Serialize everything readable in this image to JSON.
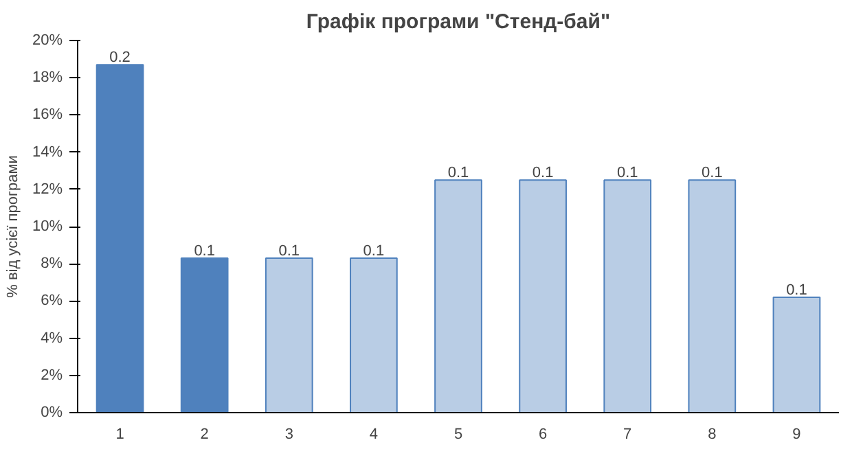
{
  "chart_data": {
    "type": "bar",
    "title": "Графік програми \"Стенд-бай\"",
    "ylabel": "% від усієї програми",
    "categories": [
      "1",
      "2",
      "3",
      "4",
      "5",
      "6",
      "7",
      "8",
      "9"
    ],
    "values": [
      0.187,
      0.083,
      0.083,
      0.083,
      0.125,
      0.125,
      0.125,
      0.125,
      0.062
    ],
    "colors": [
      "#4f81bd",
      "#4f81bd",
      "#b9cde5",
      "#b9cde5",
      "#b9cde5",
      "#b9cde5",
      "#b9cde5",
      "#b9cde5",
      "#b9cde5"
    ],
    "value_labels": [
      "0.2",
      "0.1",
      "0.1",
      "0.1",
      "0.1",
      "0.1",
      "0.1",
      "0.1",
      "0.1"
    ],
    "ylim": [
      0,
      0.2
    ],
    "yticks": [
      {
        "value": 0,
        "label": "0%"
      },
      {
        "value": 0.02,
        "label": "2%"
      },
      {
        "value": 0.04,
        "label": "4%"
      },
      {
        "value": 0.06,
        "label": "6%"
      },
      {
        "value": 0.08,
        "label": "8%"
      },
      {
        "value": 0.1,
        "label": "10%"
      },
      {
        "value": 0.12,
        "label": "12%"
      },
      {
        "value": 0.14,
        "label": "14%"
      },
      {
        "value": 0.16,
        "label": "16%"
      },
      {
        "value": 0.18,
        "label": "18%"
      },
      {
        "value": 0.2,
        "label": "20%"
      }
    ],
    "grid": false
  }
}
